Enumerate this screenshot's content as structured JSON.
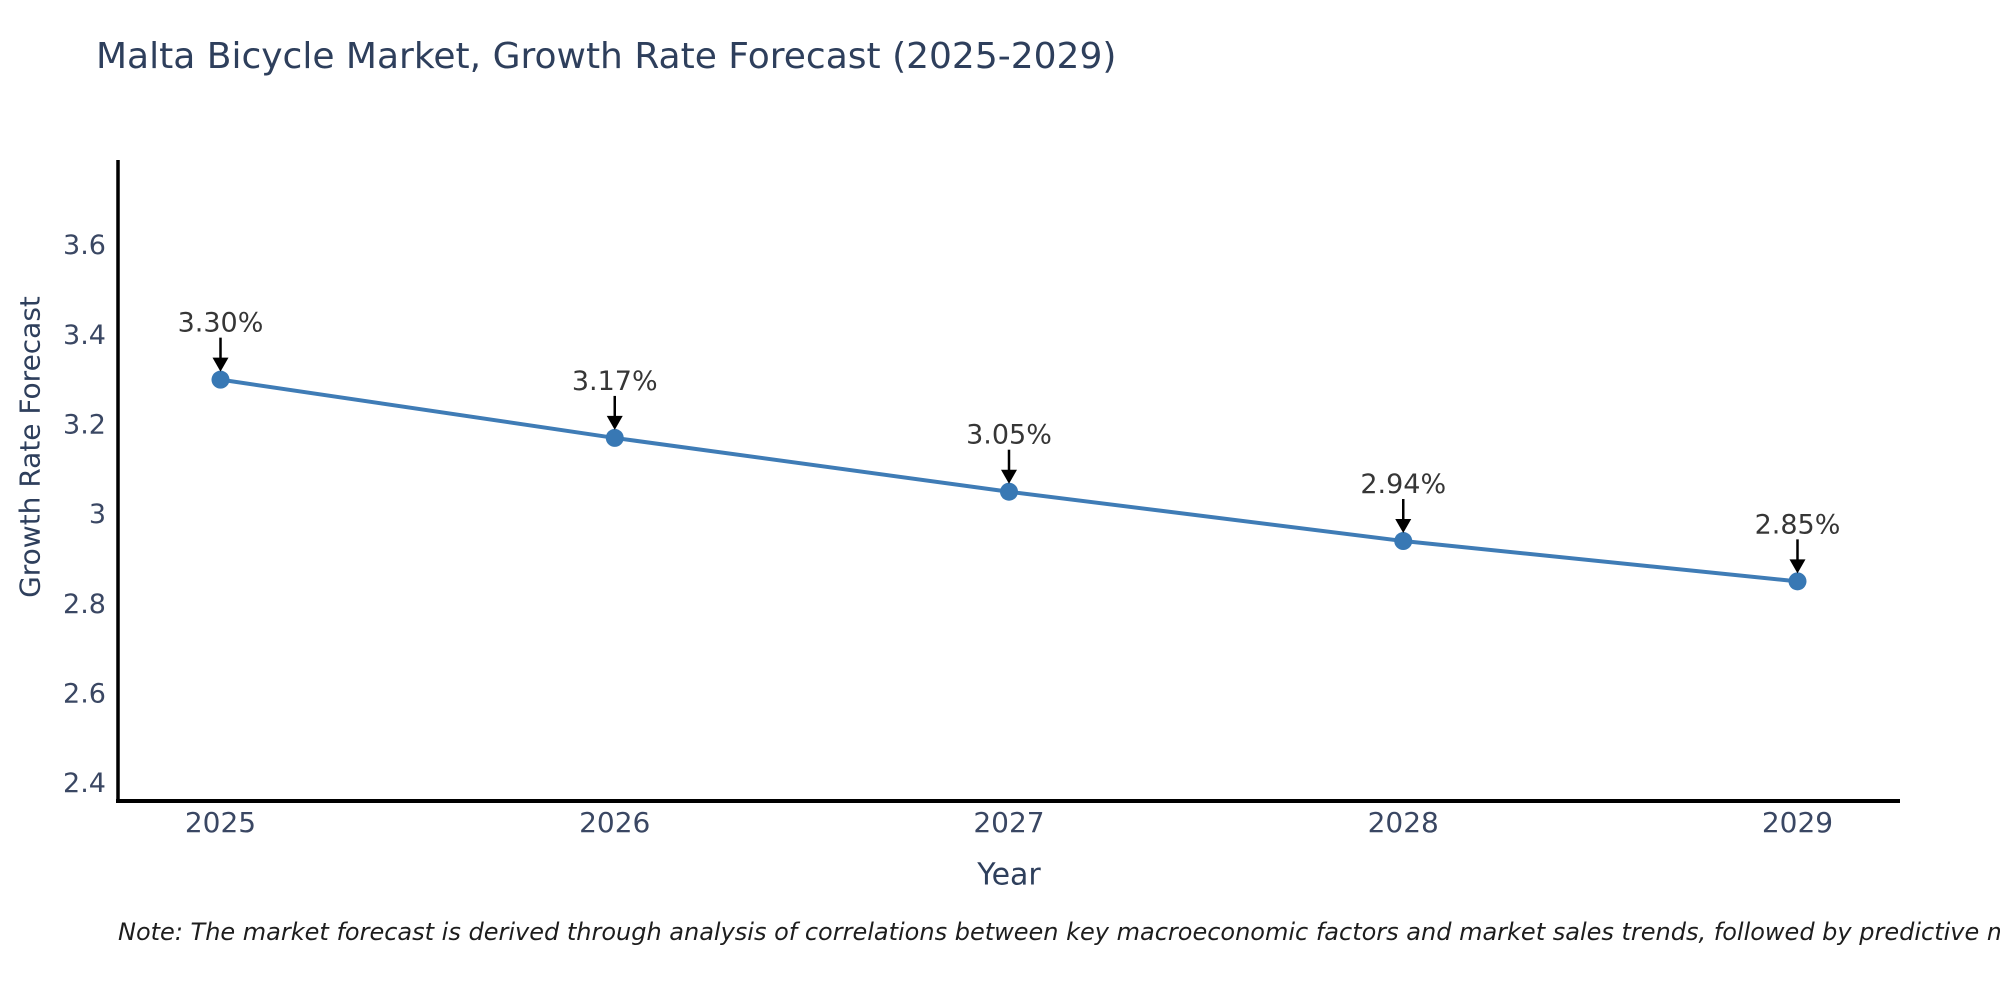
{
  "title": "Malta Bicycle Market, Growth Rate Forecast (2025-2029)",
  "note": "Note: The market forecast is derived through analysis of correlations between key macroeconomic factors and market sales trends, followed by predictive modeling to project future sales",
  "colors": {
    "line": "#3f7cb6",
    "marker": "#3878b4",
    "axis": "#000000",
    "tick_text": "#3a4763",
    "title_text": "#2e3f5c",
    "annotation_text": "#363636",
    "background": "#ffffff"
  },
  "chart_data": {
    "type": "line",
    "title": "Malta Bicycle Market, Growth Rate Forecast (2025-2029)",
    "xlabel": "Year",
    "ylabel": "Growth Rate Forecast",
    "x": [
      2025,
      2026,
      2027,
      2028,
      2029
    ],
    "series": [
      {
        "name": "Growth Rate Forecast",
        "values": [
          3.3,
          3.17,
          3.05,
          2.94,
          2.85
        ],
        "point_labels": [
          "3.30%",
          "3.17%",
          "3.05%",
          "2.94%",
          "2.85%"
        ]
      }
    ],
    "x_tick_labels": [
      "2025",
      "2026",
      "2027",
      "2028",
      "2029"
    ],
    "y_ticks": [
      3.6,
      3.4,
      3.2,
      3.0,
      2.8,
      2.6,
      2.4
    ],
    "y_tick_labels": [
      "3.6",
      "3.4",
      "3.2",
      "3",
      "2.8",
      "2.6",
      "2.4"
    ],
    "ylim": [
      2.36,
      3.79
    ],
    "xlim": [
      2024.74,
      2029.26
    ],
    "grid": false,
    "legend_position": "none",
    "annotations_have_arrows": true
  }
}
